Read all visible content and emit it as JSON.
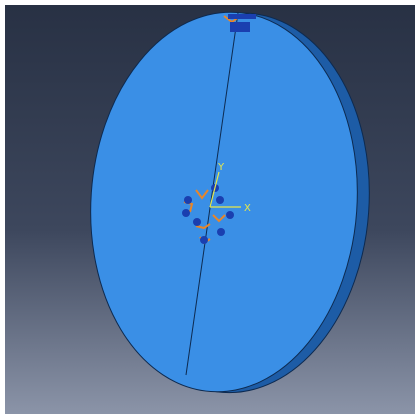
{
  "viewport": {
    "axes": {
      "y": "Y",
      "x": "X"
    }
  }
}
